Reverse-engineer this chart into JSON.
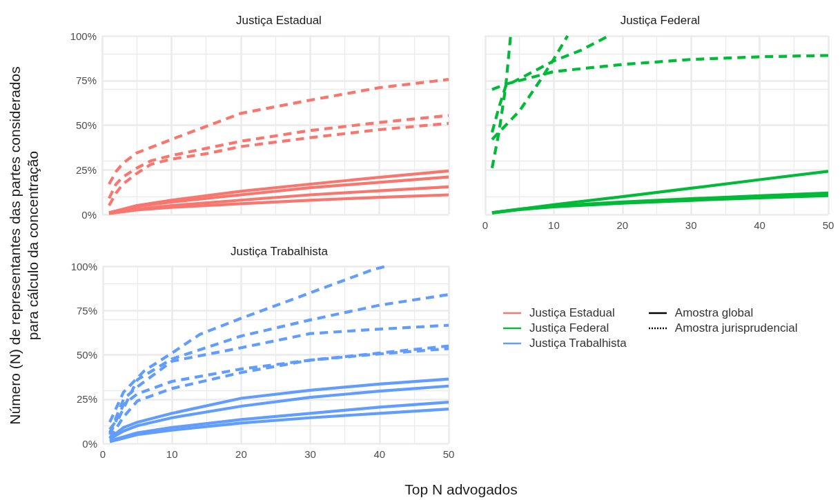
{
  "chart_data": [
    {
      "type": "line",
      "title": "Justiça Estadual",
      "ylabel": "Número (N) de representantes das partes considerados para cálculo da concentração",
      "xlim": [
        0,
        50
      ],
      "xticks": [
        0,
        10,
        20,
        30,
        40,
        50
      ],
      "ylim": [
        0,
        100
      ],
      "yticks": [
        {
          "value": 0,
          "label": "0%"
        },
        {
          "value": 25,
          "label": "25%"
        },
        {
          "value": 50,
          "label": "50%"
        },
        {
          "value": 75,
          "label": "75%"
        },
        {
          "value": 100,
          "label": "100%"
        }
      ],
      "grid": true,
      "tick_labels": "y",
      "series": [
        {
          "color": "#f8766d",
          "line_style": "solid",
          "x": [
            1,
            5,
            10,
            20,
            30,
            40,
            50
          ],
          "values": [
            1,
            5,
            8,
            13,
            17,
            20.8,
            24.4
          ]
        },
        {
          "color": "#f8766d",
          "line_style": "solid",
          "x": [
            1,
            5,
            10,
            20,
            30,
            40,
            50
          ],
          "values": [
            1,
            4.5,
            7,
            11,
            15,
            18,
            21
          ]
        },
        {
          "color": "#f8766d",
          "line_style": "solid",
          "x": [
            1,
            5,
            10,
            20,
            30,
            40,
            50
          ],
          "values": [
            0.7,
            3,
            5,
            8,
            11,
            13.3,
            15.5
          ]
        },
        {
          "color": "#f8766d",
          "line_style": "solid",
          "x": [
            1,
            5,
            10,
            20,
            30,
            40,
            50
          ],
          "values": [
            0.5,
            2.5,
            4,
            6,
            8,
            9.6,
            11
          ]
        },
        {
          "color": "#f8766d",
          "line_style": "dashed",
          "x": [
            1,
            2,
            3,
            5,
            10,
            20,
            30,
            40,
            50
          ],
          "values": [
            17,
            24,
            28.7,
            34.5,
            42,
            56.6,
            64,
            71,
            75.6
          ]
        },
        {
          "color": "#f8766d",
          "line_style": "dashed",
          "x": [
            1,
            2,
            3,
            5,
            7,
            10,
            15,
            20,
            30,
            40,
            50
          ],
          "values": [
            9,
            17,
            21,
            26,
            30,
            33,
            37,
            41,
            47,
            51.5,
            55.4
          ]
        },
        {
          "color": "#f8766d",
          "line_style": "dashed",
          "x": [
            1,
            2,
            3,
            5,
            7,
            10,
            15,
            20,
            30,
            40,
            50
          ],
          "values": [
            5,
            12,
            17,
            23,
            28,
            31,
            34,
            38,
            43,
            47.5,
            51
          ]
        }
      ]
    },
    {
      "type": "line",
      "title": "Justiça Federal",
      "xlim": [
        0,
        50
      ],
      "xticks": [
        0,
        10,
        20,
        30,
        40,
        50
      ],
      "ylim": [
        0,
        100
      ],
      "yticks": [
        0,
        25,
        50,
        75,
        100
      ],
      "grid": true,
      "tick_labels": "x",
      "series": [
        {
          "color": "#00ba38",
          "line_style": "solid",
          "x": [
            1,
            10,
            20,
            30,
            40,
            50
          ],
          "values": [
            1,
            5.5,
            10,
            14.7,
            19.5,
            24.2
          ]
        },
        {
          "color": "#00ba38",
          "line_style": "solid",
          "x": [
            1,
            5,
            10,
            20,
            30,
            40,
            50
          ],
          "values": [
            1,
            3,
            4.8,
            7,
            8.8,
            10.5,
            12
          ]
        },
        {
          "color": "#00ba38",
          "line_style": "solid",
          "x": [
            1,
            5,
            10,
            20,
            30,
            40,
            50
          ],
          "values": [
            0.8,
            2.7,
            4.3,
            6.3,
            7.9,
            9.3,
            10.6
          ]
        },
        {
          "color": "#00ba38",
          "line_style": "dashed",
          "x": [
            1,
            2,
            3,
            3.7
          ],
          "values": [
            26,
            46,
            72,
            100
          ]
        },
        {
          "color": "#00ba38",
          "line_style": "dashed",
          "x": [
            1,
            3,
            5,
            8,
            10,
            12
          ],
          "values": [
            42,
            50,
            58,
            75,
            87,
            100
          ]
        },
        {
          "color": "#00ba38",
          "line_style": "dashed",
          "x": [
            1,
            2,
            3,
            5,
            8,
            10,
            14,
            18
          ],
          "values": [
            46,
            60,
            72,
            76,
            82,
            86,
            92,
            100
          ]
        },
        {
          "color": "#00ba38",
          "line_style": "dashed",
          "x": [
            1,
            3,
            10,
            20,
            30,
            40,
            50
          ],
          "values": [
            70,
            73,
            80,
            84,
            86.8,
            88.3,
            89
          ]
        }
      ]
    },
    {
      "type": "line",
      "title": "Justiça Trabalhista",
      "xlabel": "Top N advogados",
      "xlim": [
        0,
        50
      ],
      "xticks": [
        0,
        10,
        20,
        30,
        40,
        50
      ],
      "ylim": [
        0,
        100
      ],
      "yticks": [
        {
          "value": 0,
          "label": "0%"
        },
        {
          "value": 25,
          "label": "25%"
        },
        {
          "value": 50,
          "label": "50%"
        },
        {
          "value": 75,
          "label": "75%"
        },
        {
          "value": 100,
          "label": "100%"
        }
      ],
      "grid": true,
      "series": [
        {
          "color": "#619cff",
          "line_style": "solid",
          "x": [
            1,
            3,
            5,
            10,
            20,
            30,
            40,
            50
          ],
          "values": [
            3,
            9,
            12,
            17,
            25.5,
            30,
            33.5,
            36.3
          ]
        },
        {
          "color": "#619cff",
          "line_style": "solid",
          "x": [
            1,
            3,
            5,
            10,
            20,
            30,
            40,
            50
          ],
          "values": [
            2.5,
            7,
            10,
            14.5,
            21,
            26,
            29.5,
            32.4
          ]
        },
        {
          "color": "#619cff",
          "line_style": "solid",
          "x": [
            1,
            5,
            10,
            20,
            30,
            40,
            50
          ],
          "values": [
            1.5,
            6,
            9,
            13.5,
            17,
            20.5,
            23.3
          ]
        },
        {
          "color": "#619cff",
          "line_style": "solid",
          "x": [
            1,
            5,
            10,
            20,
            30,
            40,
            50
          ],
          "values": [
            1,
            5,
            7.5,
            11.5,
            14.5,
            17,
            19.4
          ]
        },
        {
          "color": "#619cff",
          "line_style": "dashed",
          "x": [
            1,
            3,
            6,
            10,
            14,
            20,
            30,
            39,
            41
          ],
          "values": [
            12,
            29,
            41,
            51,
            61.5,
            70.6,
            85,
            98,
            100
          ]
        },
        {
          "color": "#619cff",
          "line_style": "dashed",
          "x": [
            1,
            2.4,
            5,
            10,
            20,
            30,
            40,
            50
          ],
          "values": [
            8,
            15,
            36,
            47.7,
            60.6,
            69.7,
            78,
            84
          ]
        },
        {
          "color": "#619cff",
          "line_style": "dashed",
          "x": [
            1,
            3,
            5,
            10,
            20,
            30,
            40,
            50
          ],
          "values": [
            6,
            25,
            32,
            46.4,
            54,
            62,
            64.5,
            66.7
          ]
        },
        {
          "color": "#619cff",
          "line_style": "dashed",
          "x": [
            1,
            3,
            5,
            10,
            20,
            30,
            40,
            50
          ],
          "values": [
            5,
            22,
            28,
            35,
            42,
            47,
            51,
            55
          ]
        },
        {
          "color": "#619cff",
          "line_style": "dashed",
          "x": [
            1,
            3,
            5,
            10,
            20,
            30,
            40,
            50
          ],
          "values": [
            3,
            15,
            24,
            31,
            40,
            47,
            50.5,
            53.5
          ]
        }
      ]
    },
    {
      "type": "other",
      "legend": "right",
      "series": [
        {
          "name": "Justiça Estadual",
          "color": "#f8766d"
        },
        {
          "name": "Justiça Federal",
          "color": "#00ba38"
        },
        {
          "name": "Justiça Trabalhista",
          "color": "#619cff"
        },
        {
          "name": "Amostra global",
          "color": "#000000",
          "line_style": "solid"
        },
        {
          "name": "Amostra jurisprudencial",
          "color": "#000000",
          "line_style": "dotted"
        }
      ]
    }
  ]
}
